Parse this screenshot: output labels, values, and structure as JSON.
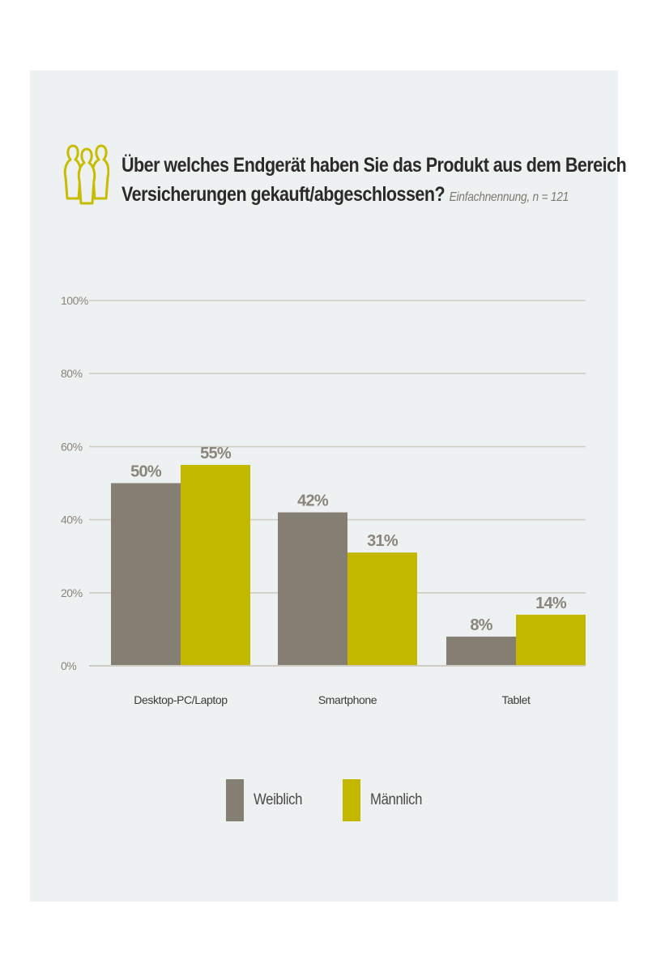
{
  "header": {
    "icon": "people-group-icon",
    "title_line1": "Über welches Endgerät haben Sie das Produkt aus dem Bereich",
    "title_line2": "Versicherungen gekauft/abgeschlossen?",
    "subtitle": "Einfachnennung, n = 121"
  },
  "colors": {
    "panel": "#edf1f1",
    "weiblich": "#847f72",
    "maennlich": "#c2b800",
    "grid": "#cfccc3",
    "axis_text": "#8a857a",
    "icon": "#c8bc00"
  },
  "chart_data": {
    "type": "bar",
    "categories": [
      "Desktop-PC/Laptop",
      "Smartphone",
      "Tablet"
    ],
    "series": [
      {
        "name": "Weiblich",
        "values": [
          50,
          42,
          8
        ],
        "labels": [
          "50%",
          "42%",
          "8%"
        ]
      },
      {
        "name": "Männlich",
        "values": [
          55,
          31,
          14
        ],
        "labels": [
          "55%",
          "31%",
          "14%"
        ]
      }
    ],
    "yticks": [
      "0%",
      "20%",
      "40%",
      "60%",
      "80%",
      "100%"
    ],
    "ylim": [
      0,
      100
    ],
    "grid": true,
    "legend": "bottom"
  },
  "legend": {
    "items": [
      "Weiblich",
      "Männlich"
    ]
  }
}
